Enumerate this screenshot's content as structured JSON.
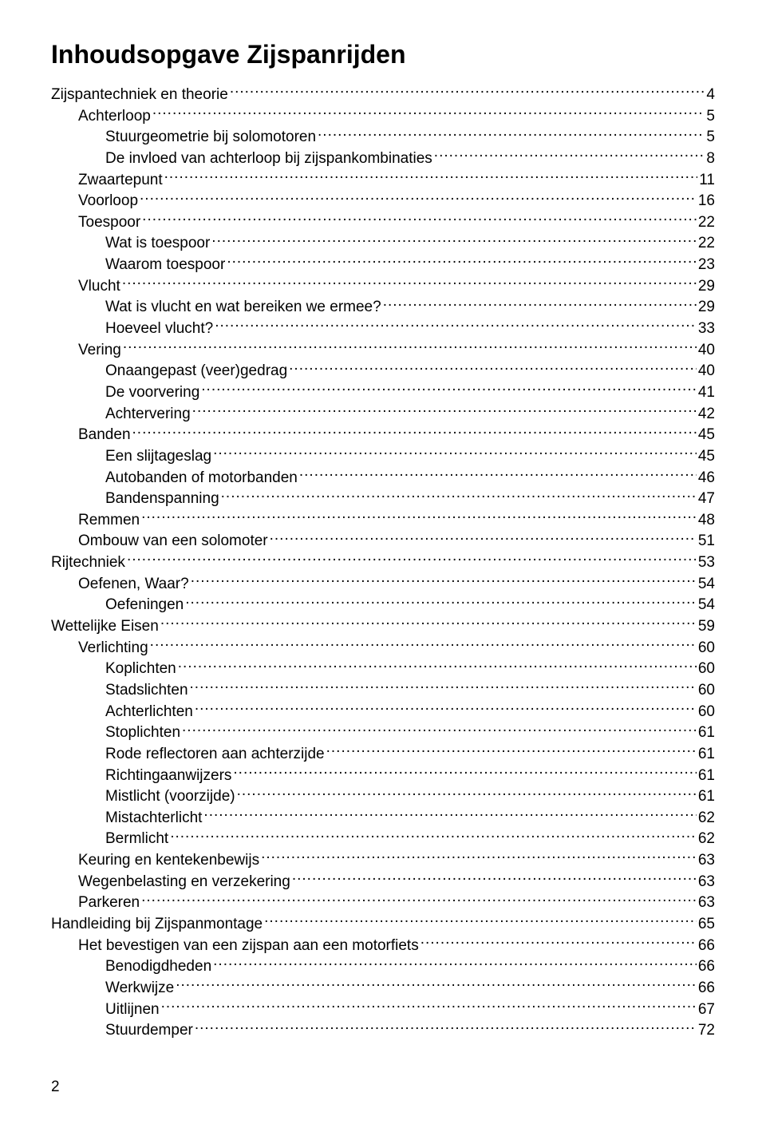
{
  "title": "Inhoudsopgave Zijspanrijden",
  "pageNumber": "2",
  "fontFamily": "Arial, Helvetica, sans-serif",
  "titleFontSize": 32,
  "bodyFontSize": 19,
  "indentStep": 34,
  "textColor": "#000000",
  "backgroundColor": "#ffffff",
  "entries": [
    {
      "label": "Zijspantechniek en theorie",
      "page": "4",
      "indent": 0
    },
    {
      "label": "Achterloop",
      "page": "5",
      "indent": 1
    },
    {
      "label": "Stuurgeometrie bij solomotoren",
      "page": "5",
      "indent": 2
    },
    {
      "label": "De invloed van achterloop bij zijspankombinaties",
      "page": "8",
      "indent": 2
    },
    {
      "label": "Zwaartepunt",
      "page": "11",
      "indent": 1
    },
    {
      "label": "Voorloop",
      "page": "16",
      "indent": 1
    },
    {
      "label": "Toespoor",
      "page": "22",
      "indent": 1
    },
    {
      "label": "Wat is toespoor",
      "page": "22",
      "indent": 2
    },
    {
      "label": "Waarom toespoor",
      "page": "23",
      "indent": 2
    },
    {
      "label": "Vlucht",
      "page": "29",
      "indent": 1
    },
    {
      "label": "Wat is vlucht en wat bereiken we ermee?",
      "page": "29",
      "indent": 2
    },
    {
      "label": "Hoeveel vlucht?",
      "page": "33",
      "indent": 2
    },
    {
      "label": "Vering",
      "page": "40",
      "indent": 1
    },
    {
      "label": "Onaangepast (veer)gedrag",
      "page": "40",
      "indent": 2
    },
    {
      "label": "De voorvering",
      "page": "41",
      "indent": 2
    },
    {
      "label": "Achtervering",
      "page": "42",
      "indent": 2
    },
    {
      "label": "Banden",
      "page": "45",
      "indent": 1
    },
    {
      "label": "Een slijtageslag",
      "page": "45",
      "indent": 2
    },
    {
      "label": "Autobanden of motorbanden",
      "page": "46",
      "indent": 2
    },
    {
      "label": "Bandenspanning",
      "page": "47",
      "indent": 2
    },
    {
      "label": "Remmen",
      "page": "48",
      "indent": 1
    },
    {
      "label": "Ombouw van een solomoter",
      "page": "51",
      "indent": 1
    },
    {
      "label": "Rijtechniek",
      "page": "53",
      "indent": 0
    },
    {
      "label": "Oefenen, Waar?",
      "page": "54",
      "indent": 1
    },
    {
      "label": "Oefeningen",
      "page": "54",
      "indent": 2
    },
    {
      "label": "Wettelijke Eisen",
      "page": "59",
      "indent": 0
    },
    {
      "label": "Verlichting",
      "page": "60",
      "indent": 1
    },
    {
      "label": "Koplichten",
      "page": "60",
      "indent": 2
    },
    {
      "label": " Stadslichten",
      "page": "60",
      "indent": 2
    },
    {
      "label": "Achterlichten",
      "page": "60",
      "indent": 2
    },
    {
      "label": "Stoplichten",
      "page": "61",
      "indent": 2
    },
    {
      "label": " Rode reflectoren aan achterzijde",
      "page": "61",
      "indent": 2
    },
    {
      "label": "Richtingaanwijzers",
      "page": "61",
      "indent": 2
    },
    {
      "label": "Mistlicht (voorzijde)",
      "page": "61",
      "indent": 2
    },
    {
      "label": "Mistachterlicht",
      "page": "62",
      "indent": 2
    },
    {
      "label": "Bermlicht",
      "page": "62",
      "indent": 2
    },
    {
      "label": "Keuring en kentekenbewijs",
      "page": "63",
      "indent": 1
    },
    {
      "label": "Wegenbelasting en verzekering",
      "page": "63",
      "indent": 1
    },
    {
      "label": "Parkeren",
      "page": "63",
      "indent": 1
    },
    {
      "label": "Handleiding bij Zijspanmontage",
      "page": "65",
      "indent": 0
    },
    {
      "label": "Het bevestigen van een zijspan aan een motorfiets",
      "page": "66",
      "indent": 1
    },
    {
      "label": "Benodigdheden",
      "page": "66",
      "indent": 2
    },
    {
      "label": "Werkwijze",
      "page": "66",
      "indent": 2
    },
    {
      "label": "Uitlijnen",
      "page": "67",
      "indent": 2
    },
    {
      "label": "Stuurdemper",
      "page": "72",
      "indent": 2
    }
  ]
}
